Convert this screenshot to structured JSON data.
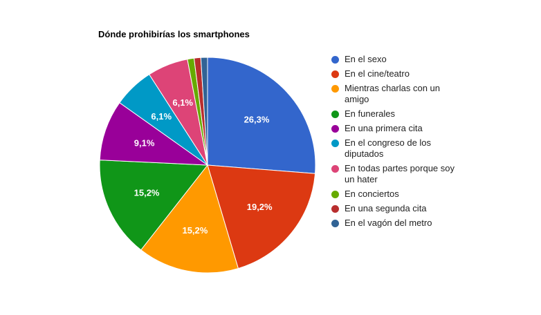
{
  "chart_data": {
    "type": "pie",
    "title": "Dónde prohibirías los smartphones",
    "legend_position": "right",
    "slices": [
      {
        "label": "En el sexo",
        "value": 26.3,
        "display": "26,3%",
        "color": "#3366cc"
      },
      {
        "label": "En el cine/teatro",
        "value": 19.2,
        "display": "19,2%",
        "color": "#dc3912"
      },
      {
        "label": "Mientras charlas con un amigo",
        "value": 15.2,
        "display": "15,2%",
        "color": "#ff9900"
      },
      {
        "label": "En funerales",
        "value": 15.2,
        "display": "15,2%",
        "color": "#109618"
      },
      {
        "label": "En una primera cita",
        "value": 9.1,
        "display": "9,1%",
        "color": "#990099"
      },
      {
        "label": "En el congreso de los diputados",
        "value": 6.1,
        "display": "6,1%",
        "color": "#0099c6"
      },
      {
        "label": "En todas partes porque soy un hater",
        "value": 6.1,
        "display": "6,1%",
        "color": "#dd4477"
      },
      {
        "label": "En conciertos",
        "value": 1.0,
        "display": "",
        "color": "#66aa00"
      },
      {
        "label": "En una segunda cita",
        "value": 1.0,
        "display": "",
        "color": "#b82e2e"
      },
      {
        "label": "En el vagón del metro",
        "value": 1.0,
        "display": "",
        "color": "#316395"
      }
    ]
  }
}
